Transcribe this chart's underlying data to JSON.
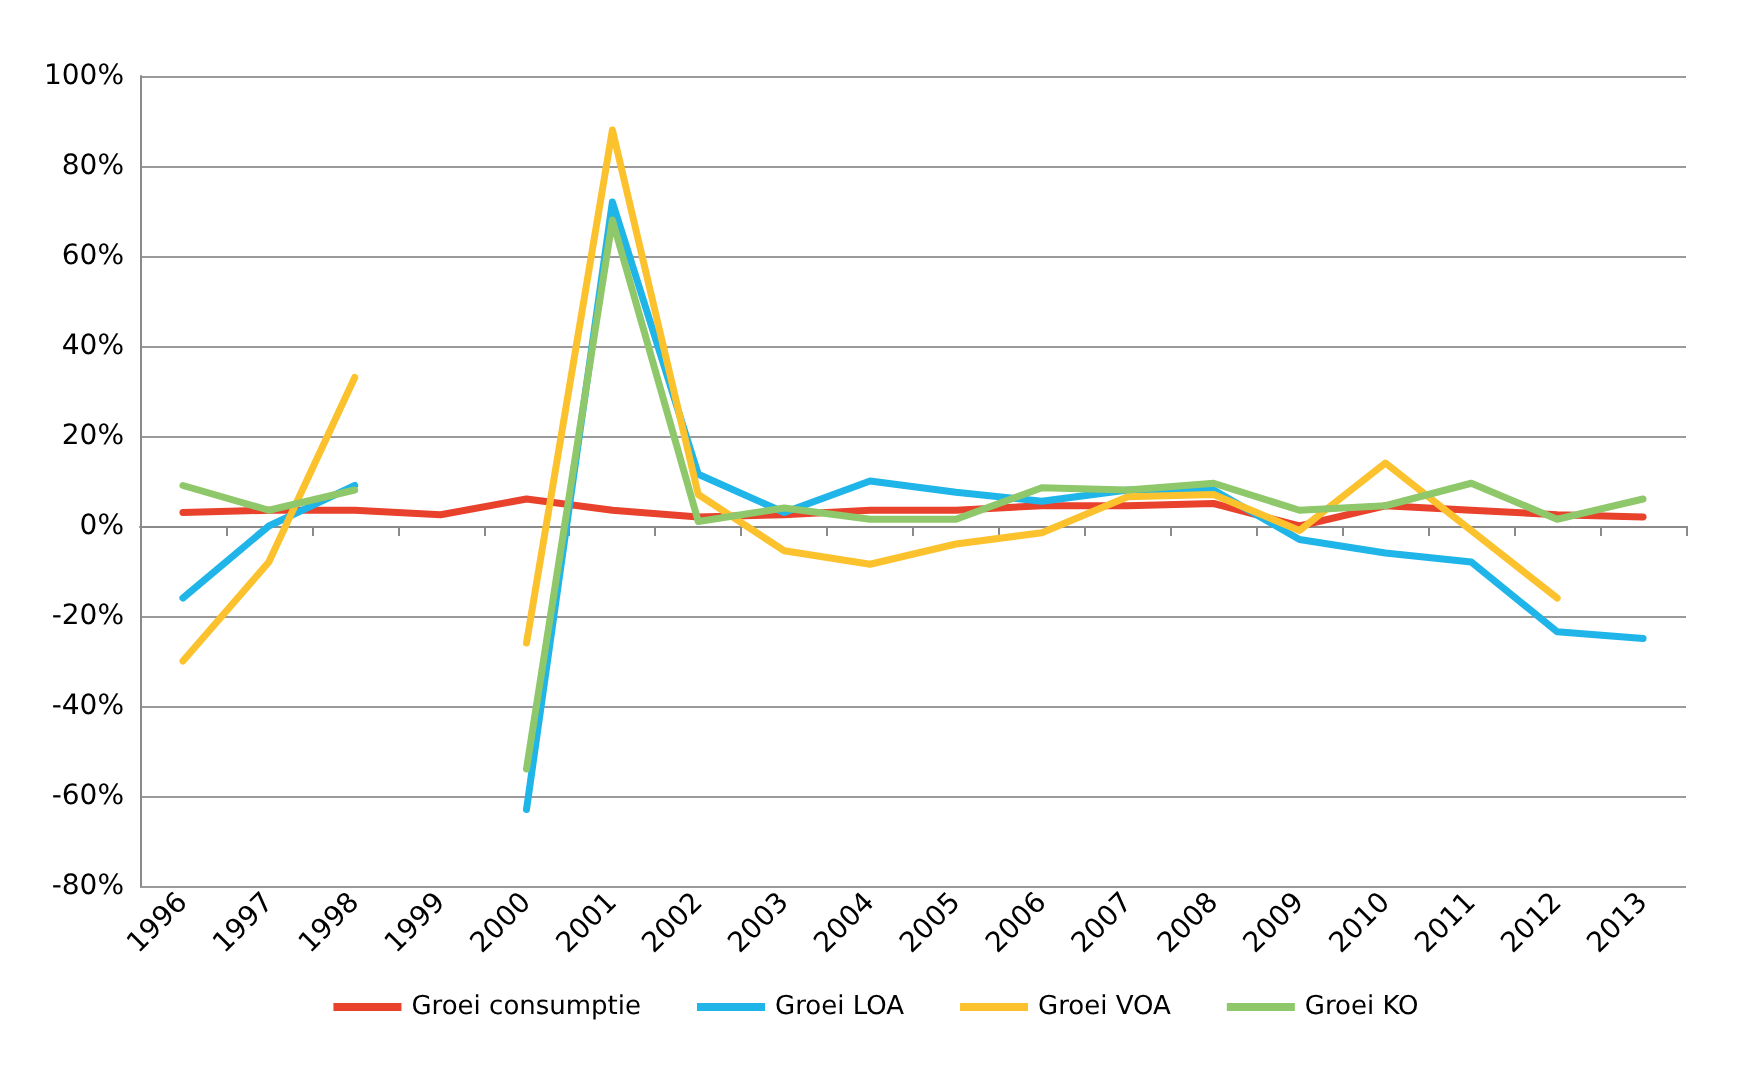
{
  "chart_data": {
    "type": "line",
    "categories": [
      "1996",
      "1997",
      "1998",
      "1999",
      "2000",
      "2001",
      "2002",
      "2003",
      "2004",
      "2005",
      "2006",
      "2007",
      "2008",
      "2009",
      "2010",
      "2011",
      "2012",
      "2013"
    ],
    "series": [
      {
        "name": "Groei consumptie",
        "color": "#e8412c",
        "values": [
          3,
          3.5,
          3.5,
          2.5,
          6,
          3.5,
          2,
          2.5,
          3.5,
          3.5,
          4.5,
          4.5,
          5,
          0,
          4.5,
          3.5,
          2.5,
          2
        ]
      },
      {
        "name": "Groei LOA",
        "color": "#1fb5e8",
        "values": [
          -16,
          0,
          9,
          null,
          -63,
          72,
          11.5,
          3,
          10,
          7.5,
          5.5,
          8,
          8,
          -3,
          -6,
          -8,
          -23.5,
          -25
        ]
      },
      {
        "name": "Groei VOA",
        "color": "#fcc22d",
        "values": [
          -30,
          -8,
          33,
          null,
          -26,
          88,
          7,
          -5.5,
          -8.5,
          -4,
          -1.5,
          6.5,
          7,
          -1,
          14,
          -1,
          -16,
          null
        ]
      },
      {
        "name": "Groei KO",
        "color": "#8ec86a",
        "values": [
          9,
          3.5,
          8,
          null,
          -54,
          68,
          1,
          4,
          1.5,
          1.5,
          8.5,
          8,
          9.5,
          3.5,
          4.5,
          9.5,
          1.5,
          6
        ]
      }
    ],
    "ylim": [
      -80,
      100
    ],
    "yticks": [
      {
        "value": -80,
        "label": "-80%"
      },
      {
        "value": -60,
        "label": "-60%"
      },
      {
        "value": -40,
        "label": "-40%"
      },
      {
        "value": -20,
        "label": "-20%"
      },
      {
        "value": 0,
        "label": "0%"
      },
      {
        "value": 20,
        "label": "20%"
      },
      {
        "value": 40,
        "label": "40%"
      },
      {
        "value": 60,
        "label": "60%"
      },
      {
        "value": 80,
        "label": "80%"
      },
      {
        "value": 100,
        "label": "100%"
      }
    ],
    "grid": "y",
    "legend": "bottom",
    "marker": "none",
    "line_style": "solid"
  }
}
